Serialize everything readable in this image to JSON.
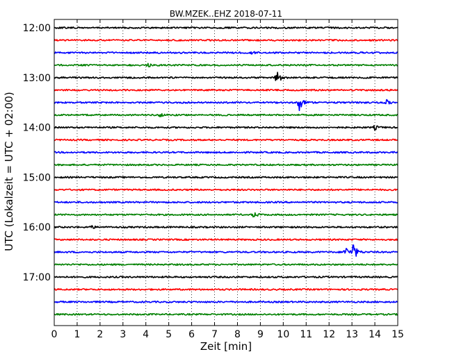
{
  "chart_data": {
    "type": "line",
    "title": "BW.MZEK..EHZ 2018-07-11",
    "xlabel": "Zeit  [min]",
    "ylabel": "UTC (Lokalzeit = UTC + 02:00)",
    "xlim": [
      0,
      15
    ],
    "x_ticks": [
      "0",
      "1",
      "2",
      "3",
      "4",
      "5",
      "6",
      "7",
      "8",
      "9",
      "10",
      "11",
      "12",
      "13",
      "14",
      "15"
    ],
    "y_ticks": [
      "12:00",
      "13:00",
      "14:00",
      "15:00",
      "16:00",
      "17:00"
    ],
    "grid": "vertical dotted",
    "colors": [
      "#000000",
      "#ff0000",
      "#0000ff",
      "#008000"
    ],
    "series": [
      {
        "start": "12:00",
        "color": "#000000",
        "events": []
      },
      {
        "start": "12:15",
        "color": "#ff0000",
        "events": []
      },
      {
        "start": "12:30",
        "color": "#0000ff",
        "events": [
          {
            "t": 8.6,
            "amp": 0.15
          }
        ]
      },
      {
        "start": "12:45",
        "color": "#008000",
        "events": [
          {
            "t": 4.1,
            "amp": 0.2
          }
        ]
      },
      {
        "start": "13:00",
        "color": "#000000",
        "events": [
          {
            "t": 9.7,
            "amp": 0.8
          }
        ]
      },
      {
        "start": "13:15",
        "color": "#ff0000",
        "events": []
      },
      {
        "start": "13:30",
        "color": "#0000ff",
        "events": [
          {
            "t": 10.7,
            "amp": 0.7
          },
          {
            "t": 14.5,
            "amp": 0.25
          }
        ]
      },
      {
        "start": "13:45",
        "color": "#008000",
        "events": [
          {
            "t": 4.6,
            "amp": 0.15
          }
        ]
      },
      {
        "start": "14:00",
        "color": "#000000",
        "events": [
          {
            "t": 14.0,
            "amp": 0.2
          }
        ]
      },
      {
        "start": "14:15",
        "color": "#ff0000",
        "events": []
      },
      {
        "start": "14:30",
        "color": "#0000ff",
        "events": []
      },
      {
        "start": "14:45",
        "color": "#008000",
        "events": []
      },
      {
        "start": "15:00",
        "color": "#000000",
        "events": []
      },
      {
        "start": "15:15",
        "color": "#ff0000",
        "events": []
      },
      {
        "start": "15:30",
        "color": "#0000ff",
        "events": []
      },
      {
        "start": "15:45",
        "color": "#008000",
        "events": [
          {
            "t": 8.7,
            "amp": 0.3
          }
        ]
      },
      {
        "start": "16:00",
        "color": "#000000",
        "events": [
          {
            "t": 1.6,
            "amp": 0.15
          }
        ]
      },
      {
        "start": "16:15",
        "color": "#ff0000",
        "events": []
      },
      {
        "start": "16:30",
        "color": "#0000ff",
        "events": [
          {
            "t": 12.7,
            "amp": 0.6
          },
          {
            "t": 13.05,
            "amp": 0.95
          }
        ]
      },
      {
        "start": "16:45",
        "color": "#008000",
        "events": []
      },
      {
        "start": "17:00",
        "color": "#000000",
        "events": []
      },
      {
        "start": "17:15",
        "color": "#ff0000",
        "events": []
      },
      {
        "start": "17:30",
        "color": "#0000ff",
        "events": []
      },
      {
        "start": "17:45",
        "color": "#008000",
        "events": []
      }
    ]
  }
}
